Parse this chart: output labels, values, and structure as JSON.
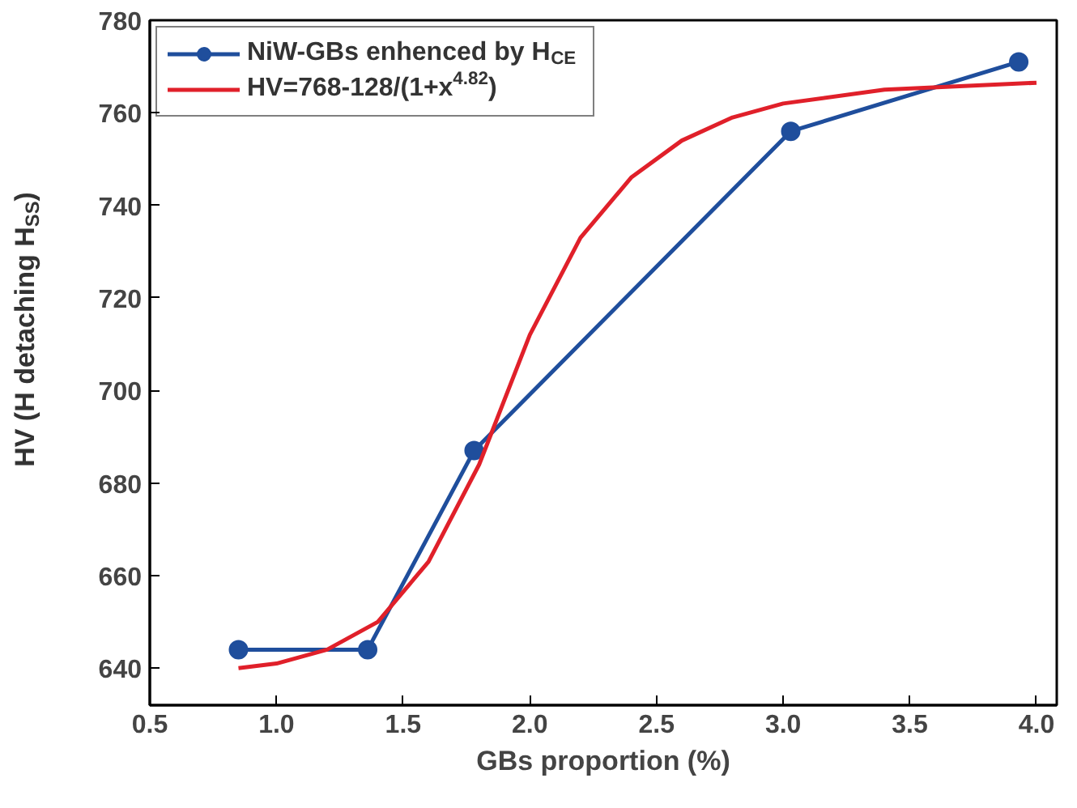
{
  "chart_data": {
    "type": "line",
    "xlabel": "GBs proportion (%)",
    "ylabel": "HV (H detaching H$_{SS}$)",
    "xlim": [
      0.5,
      4.08
    ],
    "ylim": [
      632,
      780
    ],
    "xticks": [
      {
        "value": 0.5,
        "label": "0.5"
      },
      {
        "value": 1.0,
        "label": "1.0"
      },
      {
        "value": 1.5,
        "label": "1.5"
      },
      {
        "value": 2.0,
        "label": "2.0"
      },
      {
        "value": 2.5,
        "label": "2.5"
      },
      {
        "value": 3.0,
        "label": "3.0"
      },
      {
        "value": 3.5,
        "label": "3.5"
      },
      {
        "value": 4.0,
        "label": "4.0"
      }
    ],
    "yticks": [
      640,
      660,
      680,
      700,
      720,
      740,
      760,
      780
    ],
    "grid": false,
    "legend": "top left",
    "series": [
      {
        "name": "NiW-GBs enhenced by H$_{CE}$",
        "color": "#1f4e9c",
        "marker": "circle",
        "x": [
          0.85,
          1.36,
          1.78,
          3.03,
          3.93
        ],
        "values": [
          644,
          644,
          687,
          756,
          771
        ]
      },
      {
        "name": "HV=768-128/(1+x$^{4.82}$)",
        "color": "#e0202a",
        "marker": "none",
        "x": [
          0.85,
          1.0,
          1.2,
          1.4,
          1.6,
          1.8,
          2.0,
          2.2,
          2.4,
          2.6,
          2.8,
          3.0,
          3.4,
          4.0
        ],
        "values": [
          640,
          641,
          644,
          650,
          663,
          684,
          712,
          733,
          746,
          754,
          759,
          762,
          765,
          766.5
        ]
      }
    ]
  }
}
